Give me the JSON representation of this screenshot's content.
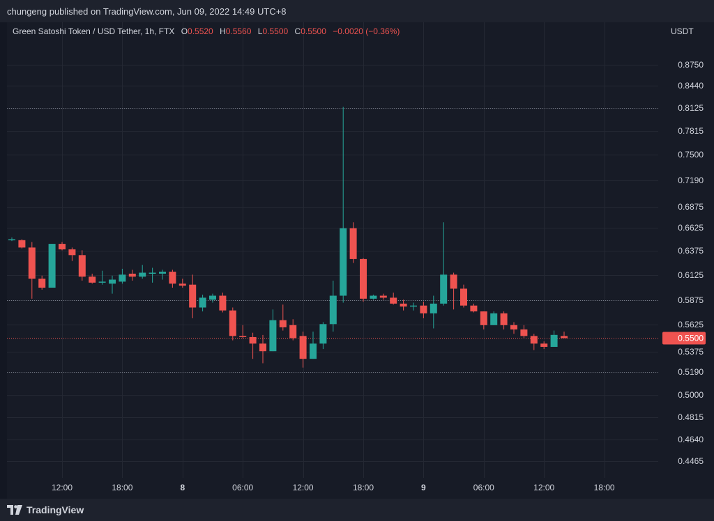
{
  "header": {
    "publisher_text": "chungeng published on TradingView.com, Jun 09, 2022 14:49 UTC+8"
  },
  "legend": {
    "symbol": "Green Satoshi Token / USD Tether, 1h, FTX",
    "open_label": "O",
    "open": "0.5520",
    "high_label": "H",
    "high": "0.5560",
    "low_label": "L",
    "low": "0.5500",
    "close_label": "C",
    "close": "0.5500",
    "change": "−0.0020 (−0.36%)"
  },
  "footer": {
    "brand": "TradingView",
    "logo_icon": "tradingview-logo-icon"
  },
  "colors": {
    "up": "#26a69a",
    "down": "#ef5350",
    "background": "#171b26",
    "grid": "#242833",
    "text": "#d1d4dc"
  },
  "chart_data": {
    "type": "candlestick",
    "y_unit": "USDT",
    "y_ticks": [
      "0.8750",
      "0.8440",
      "0.8125",
      "0.7815",
      "0.7500",
      "0.7190",
      "0.6875",
      "0.6625",
      "0.6375",
      "0.6125",
      "0.5875",
      "0.5625",
      "0.5375",
      "0.5190",
      "0.5000",
      "0.4815",
      "0.4640",
      "0.4465"
    ],
    "x_ticks": [
      {
        "label": "12:00",
        "bar": 5,
        "bold": false
      },
      {
        "label": "18:00",
        "bar": 11,
        "bold": false
      },
      {
        "label": "8",
        "bar": 17,
        "bold": true
      },
      {
        "label": "06:00",
        "bar": 23,
        "bold": false
      },
      {
        "label": "12:00",
        "bar": 29,
        "bold": false
      },
      {
        "label": "18:00",
        "bar": 35,
        "bold": false
      },
      {
        "label": "9",
        "bar": 41,
        "bold": true
      },
      {
        "label": "06:00",
        "bar": 47,
        "bold": false
      },
      {
        "label": "12:00",
        "bar": 53,
        "bold": false
      },
      {
        "label": "18:00",
        "bar": 59,
        "bold": false
      }
    ],
    "horizontal_lines": [
      {
        "price": 0.8125,
        "style": "dotted-gray"
      },
      {
        "price": 0.5875,
        "style": "dotted-gray"
      },
      {
        "price": 0.519,
        "style": "dotted-gray"
      },
      {
        "price": 0.55,
        "style": "dotted-red",
        "label": "0.5500"
      }
    ],
    "candles": [
      {
        "o": 0.65,
        "h": 0.652,
        "l": 0.648,
        "c": 0.65
      },
      {
        "o": 0.649,
        "h": 0.65,
        "l": 0.64,
        "c": 0.641
      },
      {
        "o": 0.641,
        "h": 0.647,
        "l": 0.589,
        "c": 0.609
      },
      {
        "o": 0.609,
        "h": 0.612,
        "l": 0.598,
        "c": 0.6
      },
      {
        "o": 0.6,
        "h": 0.645,
        "l": 0.6,
        "c": 0.645
      },
      {
        "o": 0.645,
        "h": 0.647,
        "l": 0.638,
        "c": 0.639
      },
      {
        "o": 0.639,
        "h": 0.641,
        "l": 0.627,
        "c": 0.633
      },
      {
        "o": 0.633,
        "h": 0.638,
        "l": 0.607,
        "c": 0.611
      },
      {
        "o": 0.611,
        "h": 0.614,
        "l": 0.604,
        "c": 0.605
      },
      {
        "o": 0.605,
        "h": 0.617,
        "l": 0.603,
        "c": 0.606
      },
      {
        "o": 0.604,
        "h": 0.612,
        "l": 0.594,
        "c": 0.608
      },
      {
        "o": 0.606,
        "h": 0.619,
        "l": 0.604,
        "c": 0.613
      },
      {
        "o": 0.614,
        "h": 0.618,
        "l": 0.607,
        "c": 0.611
      },
      {
        "o": 0.611,
        "h": 0.623,
        "l": 0.609,
        "c": 0.615
      },
      {
        "o": 0.615,
        "h": 0.62,
        "l": 0.605,
        "c": 0.615
      },
      {
        "o": 0.614,
        "h": 0.618,
        "l": 0.608,
        "c": 0.616
      },
      {
        "o": 0.616,
        "h": 0.618,
        "l": 0.6,
        "c": 0.604
      },
      {
        "o": 0.604,
        "h": 0.609,
        "l": 0.6,
        "c": 0.602
      },
      {
        "o": 0.603,
        "h": 0.613,
        "l": 0.569,
        "c": 0.58
      },
      {
        "o": 0.58,
        "h": 0.593,
        "l": 0.576,
        "c": 0.59
      },
      {
        "o": 0.588,
        "h": 0.594,
        "l": 0.585,
        "c": 0.592
      },
      {
        "o": 0.592,
        "h": 0.595,
        "l": 0.575,
        "c": 0.577
      },
      {
        "o": 0.577,
        "h": 0.58,
        "l": 0.548,
        "c": 0.552
      },
      {
        "o": 0.552,
        "h": 0.562,
        "l": 0.55,
        "c": 0.551
      },
      {
        "o": 0.551,
        "h": 0.555,
        "l": 0.531,
        "c": 0.545
      },
      {
        "o": 0.545,
        "h": 0.553,
        "l": 0.527,
        "c": 0.538
      },
      {
        "o": 0.538,
        "h": 0.578,
        "l": 0.538,
        "c": 0.567
      },
      {
        "o": 0.567,
        "h": 0.583,
        "l": 0.557,
        "c": 0.56
      },
      {
        "o": 0.562,
        "h": 0.568,
        "l": 0.548,
        "c": 0.55
      },
      {
        "o": 0.552,
        "h": 0.556,
        "l": 0.523,
        "c": 0.531
      },
      {
        "o": 0.531,
        "h": 0.556,
        "l": 0.531,
        "c": 0.545
      },
      {
        "o": 0.545,
        "h": 0.565,
        "l": 0.54,
        "c": 0.563
      },
      {
        "o": 0.563,
        "h": 0.607,
        "l": 0.556,
        "c": 0.592
      },
      {
        "o": 0.592,
        "h": 0.814,
        "l": 0.585,
        "c": 0.662
      },
      {
        "o": 0.662,
        "h": 0.669,
        "l": 0.625,
        "c": 0.629
      },
      {
        "o": 0.629,
        "h": 0.63,
        "l": 0.586,
        "c": 0.589
      },
      {
        "o": 0.589,
        "h": 0.593,
        "l": 0.588,
        "c": 0.592
      },
      {
        "o": 0.592,
        "h": 0.594,
        "l": 0.588,
        "c": 0.59
      },
      {
        "o": 0.59,
        "h": 0.595,
        "l": 0.583,
        "c": 0.584
      },
      {
        "o": 0.584,
        "h": 0.588,
        "l": 0.577,
        "c": 0.581
      },
      {
        "o": 0.581,
        "h": 0.585,
        "l": 0.577,
        "c": 0.582
      },
      {
        "o": 0.582,
        "h": 0.586,
        "l": 0.569,
        "c": 0.574
      },
      {
        "o": 0.574,
        "h": 0.592,
        "l": 0.559,
        "c": 0.584
      },
      {
        "o": 0.584,
        "h": 0.669,
        "l": 0.582,
        "c": 0.613
      },
      {
        "o": 0.613,
        "h": 0.615,
        "l": 0.578,
        "c": 0.599
      },
      {
        "o": 0.599,
        "h": 0.603,
        "l": 0.58,
        "c": 0.582
      },
      {
        "o": 0.582,
        "h": 0.584,
        "l": 0.575,
        "c": 0.576
      },
      {
        "o": 0.576,
        "h": 0.576,
        "l": 0.558,
        "c": 0.562
      },
      {
        "o": 0.562,
        "h": 0.576,
        "l": 0.562,
        "c": 0.574
      },
      {
        "o": 0.574,
        "h": 0.576,
        "l": 0.558,
        "c": 0.562
      },
      {
        "o": 0.562,
        "h": 0.565,
        "l": 0.554,
        "c": 0.558
      },
      {
        "o": 0.558,
        "h": 0.562,
        "l": 0.55,
        "c": 0.552
      },
      {
        "o": 0.552,
        "h": 0.554,
        "l": 0.539,
        "c": 0.545
      },
      {
        "o": 0.545,
        "h": 0.547,
        "l": 0.54,
        "c": 0.542
      },
      {
        "o": 0.542,
        "h": 0.557,
        "l": 0.542,
        "c": 0.553
      },
      {
        "o": 0.552,
        "h": 0.556,
        "l": 0.55,
        "c": 0.55
      }
    ]
  }
}
